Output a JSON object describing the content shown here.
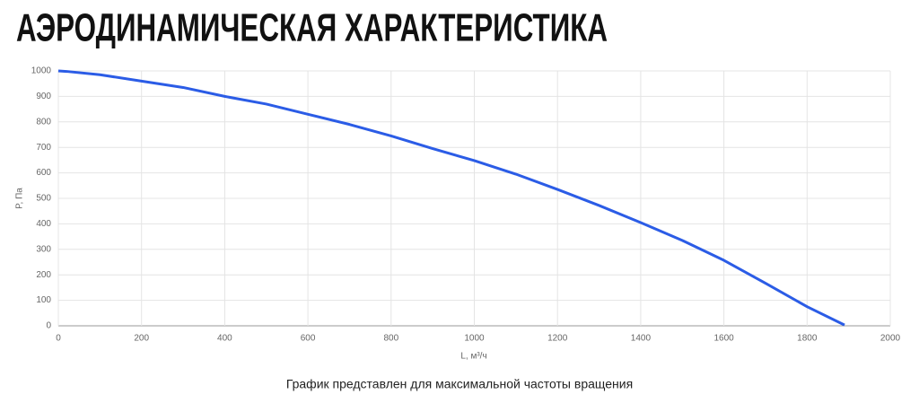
{
  "chart_data": {
    "type": "line",
    "title": "АЭРОДИНАМИЧЕСКАЯ ХАРАКТЕРИСТИКА",
    "caption": "График представлен для максимальной частоты вращения",
    "x_label": "L, м³/ч",
    "y_label": "P, Па",
    "x": [
      0,
      20,
      100,
      200,
      300,
      400,
      500,
      600,
      700,
      800,
      900,
      1000,
      1100,
      1200,
      1300,
      1400,
      1500,
      1600,
      1700,
      1800,
      1890
    ],
    "series": [
      {
        "name": "P",
        "color": "#2b5ce6",
        "values": [
          1000,
          998,
          985,
          960,
          935,
          900,
          870,
          830,
          790,
          745,
          695,
          648,
          595,
          535,
          472,
          405,
          335,
          257,
          167,
          75,
          3
        ]
      }
    ],
    "xlim": [
      0,
      2000
    ],
    "xticks": [
      0,
      200,
      400,
      600,
      800,
      1000,
      1200,
      1400,
      1600,
      1800,
      2000
    ],
    "ylim": [
      0,
      1000
    ],
    "yticks": [
      0,
      100,
      200,
      300,
      400,
      500,
      600,
      700,
      800,
      900,
      1000
    ],
    "grid": true
  }
}
